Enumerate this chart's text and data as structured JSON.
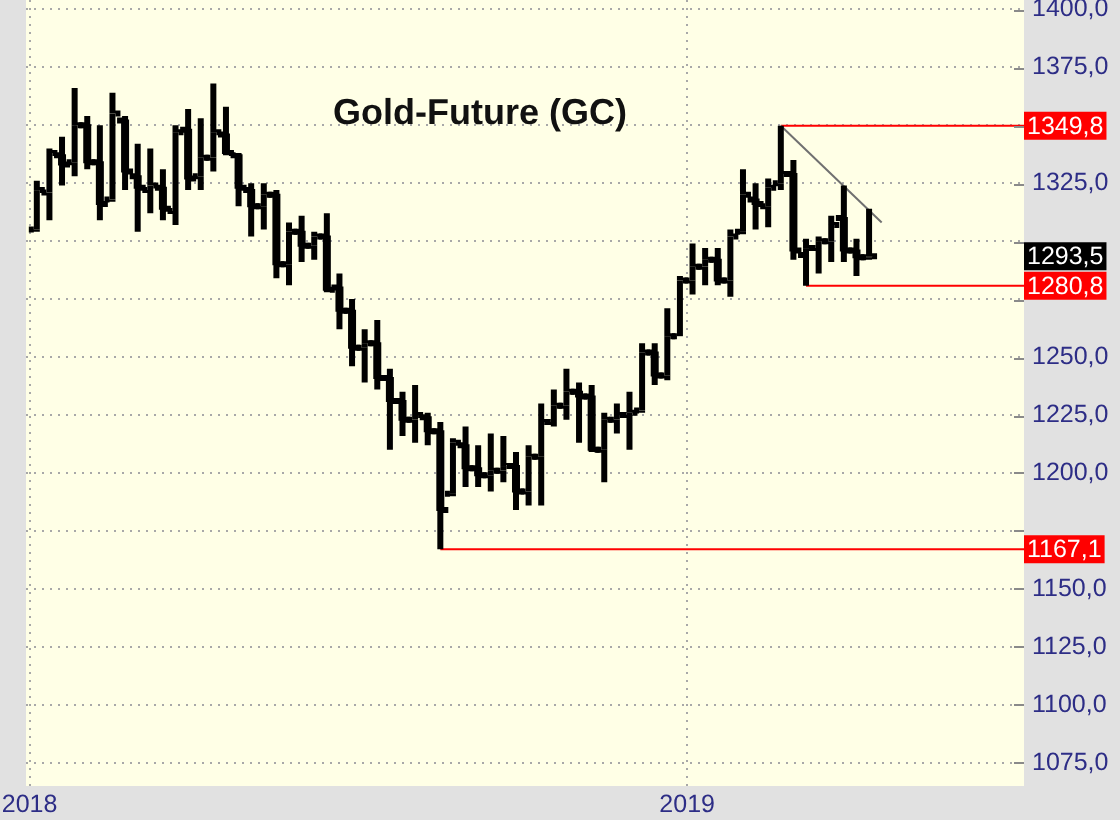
{
  "chart_data": {
    "type": "candlestick",
    "title": "Gold-Future (GC)",
    "color": "#000000",
    "x": [
      "2018-01-05",
      "2018-01-12",
      "2018-01-19",
      "2018-01-26",
      "2018-02-02",
      "2018-02-09",
      "2018-02-16",
      "2018-02-23",
      "2018-03-02",
      "2018-03-09",
      "2018-03-16",
      "2018-03-23",
      "2018-03-30",
      "2018-04-06",
      "2018-04-13",
      "2018-04-20",
      "2018-04-27",
      "2018-05-04",
      "2018-05-11",
      "2018-05-18",
      "2018-05-25",
      "2018-06-01",
      "2018-06-08",
      "2018-06-15",
      "2018-06-22",
      "2018-06-29",
      "2018-07-06",
      "2018-07-13",
      "2018-07-20",
      "2018-07-27",
      "2018-08-03",
      "2018-08-10",
      "2018-08-17",
      "2018-08-24",
      "2018-08-31",
      "2018-09-07",
      "2018-09-14",
      "2018-09-21",
      "2018-09-28",
      "2018-10-05",
      "2018-10-12",
      "2018-10-19",
      "2018-10-26",
      "2018-11-02",
      "2018-11-09",
      "2018-11-16",
      "2018-11-23",
      "2018-11-30",
      "2018-12-07",
      "2018-12-14",
      "2018-12-21",
      "2018-12-28",
      "2019-01-04",
      "2019-01-11",
      "2019-01-18",
      "2019-01-25",
      "2019-02-01",
      "2019-02-08",
      "2019-02-15",
      "2019-02-22",
      "2019-03-01",
      "2019-03-08",
      "2019-03-15",
      "2019-03-22",
      "2019-03-29",
      "2019-04-05",
      "2019-04-12"
    ],
    "ohlc": [
      [
        1305,
        1326,
        1304,
        1322
      ],
      [
        1321,
        1340,
        1309,
        1338
      ],
      [
        1337,
        1345,
        1324,
        1333
      ],
      [
        1334,
        1366,
        1328,
        1350
      ],
      [
        1350,
        1354,
        1331,
        1334
      ],
      [
        1334,
        1350,
        1309,
        1316
      ],
      [
        1318,
        1364,
        1317,
        1355
      ],
      [
        1352,
        1354,
        1322,
        1330
      ],
      [
        1328,
        1342,
        1304,
        1323
      ],
      [
        1322,
        1340,
        1312,
        1324
      ],
      [
        1323,
        1331,
        1309,
        1314
      ],
      [
        1313,
        1350,
        1307,
        1347
      ],
      [
        1348,
        1357,
        1322,
        1327
      ],
      [
        1328,
        1353,
        1322,
        1336
      ],
      [
        1336,
        1368,
        1330,
        1347
      ],
      [
        1346,
        1358,
        1337,
        1338
      ],
      [
        1337,
        1338,
        1315,
        1323
      ],
      [
        1322,
        1325,
        1302,
        1315
      ],
      [
        1315,
        1325,
        1305,
        1320
      ],
      [
        1320,
        1322,
        1284,
        1290
      ],
      [
        1290,
        1308,
        1281,
        1304
      ],
      [
        1304,
        1311,
        1291,
        1298
      ],
      [
        1298,
        1304,
        1292,
        1302
      ],
      [
        1302,
        1312,
        1278,
        1279
      ],
      [
        1280,
        1286,
        1262,
        1270
      ],
      [
        1270,
        1275,
        1246,
        1254
      ],
      [
        1254,
        1262,
        1239,
        1256
      ],
      [
        1256,
        1266,
        1236,
        1241
      ],
      [
        1241,
        1245,
        1210,
        1231
      ],
      [
        1231,
        1235,
        1216,
        1223
      ],
      [
        1223,
        1238,
        1213,
        1225
      ],
      [
        1224,
        1226,
        1212,
        1218
      ],
      [
        1218,
        1222,
        1167.1,
        1184
      ],
      [
        1191,
        1215,
        1190,
        1213
      ],
      [
        1212,
        1220,
        1194,
        1202
      ],
      [
        1202,
        1212,
        1194,
        1199
      ],
      [
        1199,
        1217,
        1192,
        1201
      ],
      [
        1201,
        1216,
        1196,
        1203
      ],
      [
        1203,
        1209,
        1184,
        1192
      ],
      [
        1192,
        1212,
        1186,
        1207
      ],
      [
        1207,
        1230,
        1186,
        1222
      ],
      [
        1222,
        1236,
        1220,
        1229
      ],
      [
        1229,
        1245,
        1223,
        1235
      ],
      [
        1235,
        1239,
        1213,
        1233
      ],
      [
        1233,
        1238,
        1209,
        1210
      ],
      [
        1210,
        1226,
        1196,
        1223
      ],
      [
        1223,
        1230,
        1217,
        1225
      ],
      [
        1225,
        1235,
        1210,
        1226
      ],
      [
        1227,
        1256,
        1226,
        1252
      ],
      [
        1252,
        1256,
        1238,
        1242
      ],
      [
        1242,
        1271,
        1240,
        1259
      ],
      [
        1259,
        1285,
        1259,
        1283
      ],
      [
        1283,
        1299,
        1277,
        1289
      ],
      [
        1289,
        1297,
        1281,
        1292
      ],
      [
        1292,
        1297,
        1281,
        1283
      ],
      [
        1283,
        1305,
        1276,
        1302
      ],
      [
        1304,
        1331,
        1303,
        1320
      ],
      [
        1318,
        1325,
        1305,
        1316
      ],
      [
        1315,
        1327,
        1306,
        1323
      ],
      [
        1325,
        1349.8,
        1322,
        1329
      ],
      [
        1329,
        1335,
        1292,
        1296
      ],
      [
        1294,
        1301,
        1280.8,
        1297
      ],
      [
        1297,
        1302,
        1286,
        1300
      ],
      [
        1300,
        1311,
        1291,
        1307
      ],
      [
        1310,
        1324,
        1291,
        1296
      ],
      [
        1296,
        1301,
        1285,
        1293
      ],
      [
        1293,
        1314,
        1292,
        1293.5
      ]
    ],
    "series": [
      {
        "type": "line",
        "x": [
          "2019-02-22",
          "2019-07-07"
        ],
        "values": [
          1349.8,
          1349.8
        ],
        "color": "#ff0000",
        "value_labels": [
          null,
          "1349,8"
        ]
      },
      {
        "type": "line",
        "x": [
          "2019-03-08",
          "2019-07-07"
        ],
        "values": [
          1280.8,
          1280.8
        ],
        "color": "#ff0000",
        "value_labels": [
          null,
          "1280,8"
        ]
      },
      {
        "type": "line",
        "x": [
          "2018-08-17",
          "2019-07-07"
        ],
        "values": [
          1167.1,
          1167.1
        ],
        "color": "#ff0000",
        "value_labels": [
          null,
          "1167,1"
        ]
      },
      {
        "type": "line",
        "x": [
          "2019-02-22",
          "2019-04-19"
        ],
        "values": [
          1349.8,
          1308
        ],
        "color": "#707070"
      }
    ],
    "annotations": [
      {
        "text": "1293,5",
        "y": 1293.5
      }
    ],
    "xlim": [
      "2017-12-30",
      "2019-07-07"
    ],
    "xticks": [
      "2018",
      "2019"
    ],
    "ylim": [
      1065,
      1404
    ],
    "yticks": [
      {
        "value": 1075,
        "label": "1075,0"
      },
      {
        "value": 1100,
        "label": "1100,0"
      },
      {
        "value": 1125,
        "label": "1125,0"
      },
      {
        "value": 1150,
        "label": "1150,0"
      },
      {
        "value": 1175,
        "label": null
      },
      {
        "value": 1200,
        "label": "1200,0"
      },
      {
        "value": 1225,
        "label": "1225,0"
      },
      {
        "value": 1250,
        "label": "1250,0"
      },
      {
        "value": 1275,
        "label": null
      },
      {
        "value": 1300,
        "label": null
      },
      {
        "value": 1325,
        "label": "1325,0"
      },
      {
        "value": 1350,
        "label": null
      },
      {
        "value": 1375,
        "label": "1375,0"
      },
      {
        "value": 1400,
        "label": "1400,0"
      }
    ],
    "grid": true
  }
}
